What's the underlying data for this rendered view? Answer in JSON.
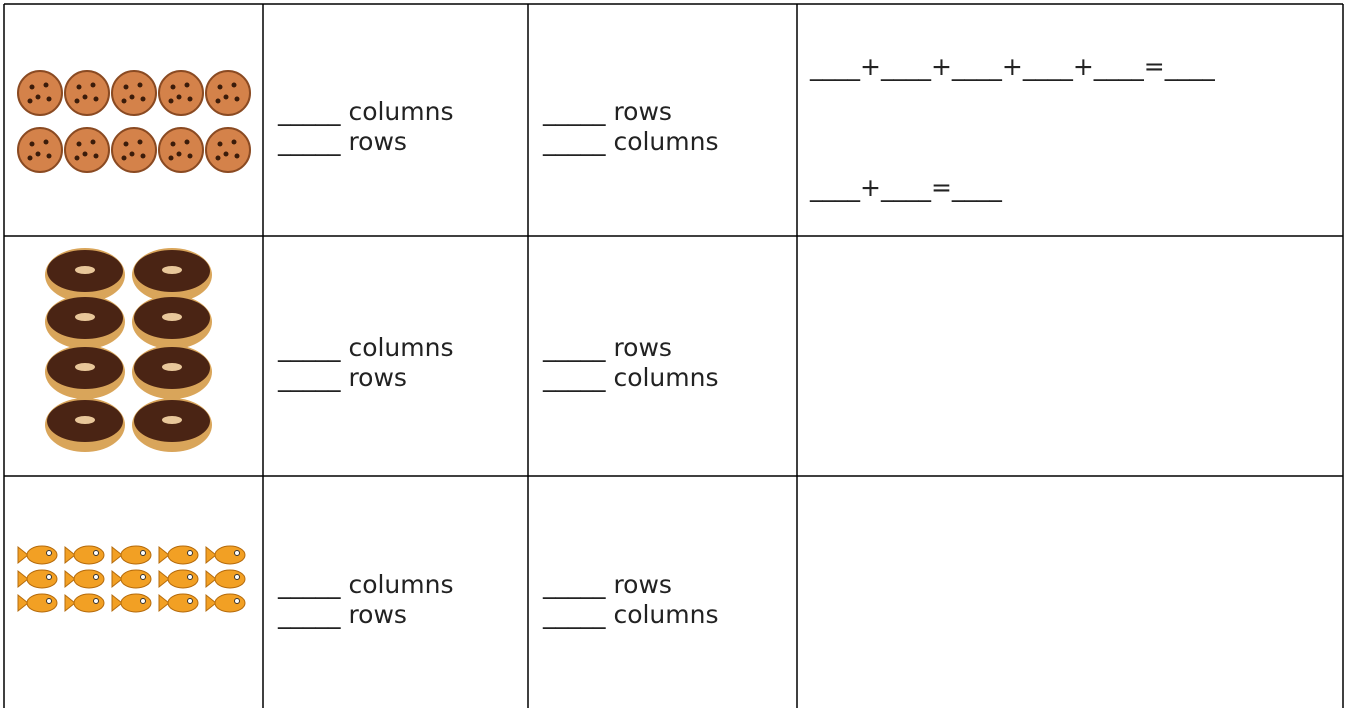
{
  "table": {
    "rows": [
      {
        "col2": [
          "_____ columns",
          "_____ rows"
        ],
        "col3": [
          "_____ rows",
          "_____ columns"
        ],
        "col4": [
          "____+____+____+____+____=____",
          "____+____=____"
        ]
      },
      {
        "col2": [
          "_____ columns",
          "_____ rows"
        ],
        "col3": [
          "_____ rows",
          "_____ columns"
        ]
      },
      {
        "col2": [
          "_____ columns",
          "_____ rows"
        ],
        "col3": [
          "_____ rows",
          "_____ columns"
        ]
      }
    ]
  }
}
